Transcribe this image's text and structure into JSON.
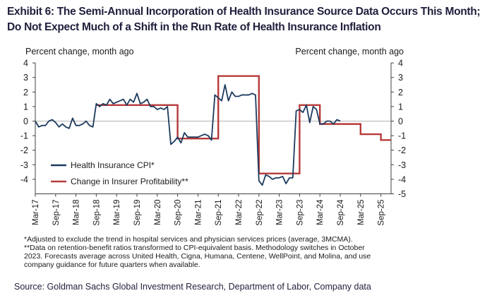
{
  "title": {
    "line1": "Exhibit 6: The Semi-Annual Incorporation of Health Insurance Source Data Occurs This Month;",
    "line2": "Do Not Expect Much of a Shift in the Run Rate of Health Insurance Inflation"
  },
  "notes": [
    "*Adjusted to exclude the trend in hospital services and physician services prices (average, 3MCMA).",
    "**Data on retention-benefit ratios transformed to CPI-equivalent basis. Methodology switches in October",
    "2023. Forecasts average across United Health, Cigna, Humana, Centene, WellPoint, and Molina, and use",
    "company guidance for future quarters when available."
  ],
  "source": "Source: Goldman Sachs Global Investment Research, Department of Labor, Company data",
  "chart_data": {
    "type": "line",
    "ylabel_left": "Percent change, month ago",
    "ylabel_right": "Percent change, month ago",
    "ylim": [
      -5,
      4
    ],
    "yticks": [
      4,
      3,
      2,
      1,
      0,
      -1,
      -2,
      -3,
      -4
    ],
    "yticks_right": [
      4,
      3,
      2,
      1,
      0,
      -1,
      -2,
      -3,
      -4,
      -5
    ],
    "x_range": [
      "2017-03",
      "2025-12"
    ],
    "x_tick_labels": [
      "Mar-17",
      "Sep-17",
      "Mar-18",
      "Sep-18",
      "Mar-19",
      "Sep-19",
      "Mar-20",
      "Sep-20",
      "Mar-21",
      "Sep-21",
      "Mar-22",
      "Sep-22",
      "Mar-23",
      "Sep-23",
      "Mar-24",
      "Sep-24",
      "Mar-25",
      "Sep-25"
    ],
    "grid": false,
    "legend_position": "lower-left",
    "colors": {
      "series1": "#1c3a5e",
      "series2": "#b63a3a",
      "axis": "#404040"
    },
    "series": [
      {
        "name": "Health Insurance CPI*",
        "x": [
          "2017-03",
          "2017-04",
          "2017-05",
          "2017-06",
          "2017-07",
          "2017-08",
          "2017-09",
          "2017-10",
          "2017-11",
          "2017-12",
          "2018-01",
          "2018-02",
          "2018-03",
          "2018-04",
          "2018-05",
          "2018-06",
          "2018-07",
          "2018-08",
          "2018-09",
          "2018-10",
          "2018-11",
          "2018-12",
          "2019-01",
          "2019-02",
          "2019-03",
          "2019-04",
          "2019-05",
          "2019-06",
          "2019-07",
          "2019-08",
          "2019-09",
          "2019-10",
          "2019-11",
          "2019-12",
          "2020-01",
          "2020-02",
          "2020-03",
          "2020-04",
          "2020-05",
          "2020-06",
          "2020-07",
          "2020-08",
          "2020-09",
          "2020-10",
          "2020-11",
          "2020-12",
          "2021-01",
          "2021-02",
          "2021-03",
          "2021-04",
          "2021-05",
          "2021-06",
          "2021-07",
          "2021-08",
          "2021-09",
          "2021-10",
          "2021-11",
          "2021-12",
          "2022-01",
          "2022-02",
          "2022-03",
          "2022-04",
          "2022-05",
          "2022-06",
          "2022-07",
          "2022-08",
          "2022-09",
          "2022-10",
          "2022-11",
          "2022-12",
          "2023-01",
          "2023-02",
          "2023-03",
          "2023-04",
          "2023-05",
          "2023-06",
          "2023-07",
          "2023-08",
          "2023-09",
          "2023-10",
          "2023-11",
          "2023-12",
          "2024-01",
          "2024-02",
          "2024-03",
          "2024-04",
          "2024-05",
          "2024-06",
          "2024-07",
          "2024-08",
          "2024-09"
        ],
        "values": [
          0.0,
          -0.4,
          -0.3,
          -0.3,
          0.0,
          0.1,
          -0.1,
          -0.4,
          -0.2,
          -0.4,
          -0.5,
          0.2,
          -0.3,
          -0.3,
          -0.2,
          0.0,
          -0.3,
          -0.4,
          1.2,
          1.0,
          1.2,
          1.1,
          1.5,
          1.2,
          1.3,
          1.4,
          1.5,
          1.1,
          1.5,
          1.3,
          1.9,
          1.2,
          1.3,
          1.5,
          1.0,
          1.0,
          0.8,
          0.9,
          0.8,
          1.0,
          -1.6,
          -1.4,
          -1.1,
          -1.5,
          -0.8,
          -1.1,
          -1.1,
          -1.1,
          -1.1,
          -1.0,
          -0.9,
          -1.0,
          -1.3,
          1.8,
          1.6,
          1.4,
          2.5,
          1.4,
          2.0,
          1.7,
          1.7,
          1.8,
          1.8,
          1.8,
          1.9,
          1.8,
          -4.1,
          -4.4,
          -3.7,
          -3.8,
          -4.0,
          -3.9,
          -3.9,
          -3.8,
          -4.3,
          -3.9,
          -3.9,
          0.7,
          0.8,
          0.6,
          1.1,
          -0.1,
          1.0,
          0.8,
          -0.2,
          -0.2,
          0.0,
          0.0,
          -0.2,
          0.1,
          0.0
        ]
      },
      {
        "name": "Change in Insurer Profitability**",
        "steps": [
          {
            "from": "2018-09",
            "to": "2020-09",
            "value": 1.1
          },
          {
            "from": "2020-09",
            "to": "2021-09",
            "value": -1.2
          },
          {
            "from": "2021-09",
            "to": "2022-09",
            "value": 3.1
          },
          {
            "from": "2022-09",
            "to": "2023-09",
            "value": -3.6
          },
          {
            "from": "2023-09",
            "to": "2024-03",
            "value": 1.1
          },
          {
            "from": "2024-03",
            "to": "2025-03",
            "value": -0.2
          },
          {
            "from": "2025-03",
            "to": "2025-09",
            "value": -0.9
          },
          {
            "from": "2025-09",
            "to": "2025-12",
            "value": -1.3
          }
        ]
      }
    ]
  }
}
